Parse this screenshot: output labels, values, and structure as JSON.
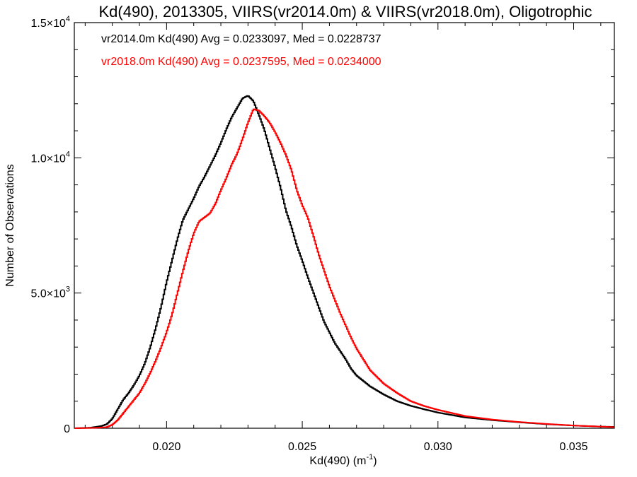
{
  "chart_data": {
    "type": "histogram",
    "title": "Kd(490), 2013305, VIIRS(vr2014.0m) & VIIRS(vr2018.0m), Oligotrophic",
    "xlabel": "Kd(490) (m",
    "xlabel_sup": "-1",
    "xlabel_close": ")",
    "ylabel": "Number of Observations",
    "xlim": [
      0.0166,
      0.0365
    ],
    "ylim": [
      0,
      15000
    ],
    "x_ticks": [
      {
        "value": 0.02,
        "label": "0.020"
      },
      {
        "value": 0.025,
        "label": "0.025"
      },
      {
        "value": 0.03,
        "label": "0.030"
      },
      {
        "value": 0.035,
        "label": "0.035"
      }
    ],
    "y_ticks": [
      {
        "value": 0,
        "mant": "0",
        "exp": ""
      },
      {
        "value": 5000,
        "mant": "5.0×10",
        "exp": "3"
      },
      {
        "value": 10000,
        "mant": "1.0×10",
        "exp": "4"
      },
      {
        "value": 15000,
        "mant": "1.5×10",
        "exp": "4"
      }
    ],
    "grid": false,
    "legend_position": "top-left",
    "series": [
      {
        "name": "vr2014.0m Kd(490) Avg = 0.0233097, Med = 0.0228737",
        "color": "#000000",
        "points": [
          [
            0.0166,
            0
          ],
          [
            0.0172,
            20
          ],
          [
            0.0176,
            80
          ],
          [
            0.0178,
            150
          ],
          [
            0.018,
            350
          ],
          [
            0.0182,
            700
          ],
          [
            0.0184,
            1050
          ],
          [
            0.0186,
            1300
          ],
          [
            0.0188,
            1600
          ],
          [
            0.019,
            1950
          ],
          [
            0.0192,
            2400
          ],
          [
            0.0194,
            3000
          ],
          [
            0.0196,
            3700
          ],
          [
            0.0198,
            4500
          ],
          [
            0.02,
            5400
          ],
          [
            0.0202,
            6200
          ],
          [
            0.0204,
            7000
          ],
          [
            0.0206,
            7700
          ],
          [
            0.0208,
            8100
          ],
          [
            0.021,
            8500
          ],
          [
            0.0212,
            8950
          ],
          [
            0.0214,
            9300
          ],
          [
            0.0216,
            9700
          ],
          [
            0.0218,
            10100
          ],
          [
            0.022,
            10550
          ],
          [
            0.0222,
            11050
          ],
          [
            0.0224,
            11500
          ],
          [
            0.0226,
            11850
          ],
          [
            0.0228,
            12200
          ],
          [
            0.023,
            12300
          ],
          [
            0.0232,
            12100
          ],
          [
            0.0234,
            11600
          ],
          [
            0.0236,
            11050
          ],
          [
            0.0238,
            10350
          ],
          [
            0.024,
            9650
          ],
          [
            0.0242,
            8900
          ],
          [
            0.0244,
            8050
          ],
          [
            0.0246,
            7450
          ],
          [
            0.0248,
            6750
          ],
          [
            0.025,
            6200
          ],
          [
            0.0252,
            5600
          ],
          [
            0.0254,
            5050
          ],
          [
            0.0256,
            4500
          ],
          [
            0.0258,
            3950
          ],
          [
            0.026,
            3550
          ],
          [
            0.0262,
            3150
          ],
          [
            0.0264,
            2850
          ],
          [
            0.0266,
            2550
          ],
          [
            0.0268,
            2200
          ],
          [
            0.027,
            1950
          ],
          [
            0.0275,
            1550
          ],
          [
            0.028,
            1250
          ],
          [
            0.0285,
            1000
          ],
          [
            0.029,
            830
          ],
          [
            0.0295,
            700
          ],
          [
            0.03,
            580
          ],
          [
            0.031,
            400
          ],
          [
            0.032,
            300
          ],
          [
            0.033,
            220
          ],
          [
            0.034,
            150
          ],
          [
            0.035,
            100
          ],
          [
            0.036,
            60
          ],
          [
            0.0365,
            50
          ]
        ]
      },
      {
        "name": "vr2018.0m Kd(490) Avg = 0.0237595, Med = 0.0234000",
        "color": "#ff0000",
        "points": [
          [
            0.0166,
            0
          ],
          [
            0.0174,
            15
          ],
          [
            0.0178,
            40
          ],
          [
            0.018,
            130
          ],
          [
            0.0182,
            300
          ],
          [
            0.0184,
            550
          ],
          [
            0.0186,
            800
          ],
          [
            0.0188,
            1050
          ],
          [
            0.019,
            1300
          ],
          [
            0.0192,
            1650
          ],
          [
            0.0194,
            2050
          ],
          [
            0.0196,
            2500
          ],
          [
            0.0198,
            3000
          ],
          [
            0.02,
            3550
          ],
          [
            0.0202,
            4200
          ],
          [
            0.0204,
            5000
          ],
          [
            0.0206,
            5800
          ],
          [
            0.0208,
            6550
          ],
          [
            0.021,
            7200
          ],
          [
            0.0212,
            7650
          ],
          [
            0.0214,
            7800
          ],
          [
            0.0216,
            7950
          ],
          [
            0.0218,
            8300
          ],
          [
            0.022,
            8800
          ],
          [
            0.0222,
            9250
          ],
          [
            0.0224,
            9750
          ],
          [
            0.0226,
            10150
          ],
          [
            0.0228,
            10700
          ],
          [
            0.023,
            11300
          ],
          [
            0.0232,
            11800
          ],
          [
            0.0234,
            11750
          ],
          [
            0.0236,
            11550
          ],
          [
            0.0238,
            11300
          ],
          [
            0.024,
            10950
          ],
          [
            0.0242,
            10550
          ],
          [
            0.0244,
            10100
          ],
          [
            0.0246,
            9550
          ],
          [
            0.0248,
            8800
          ],
          [
            0.025,
            8250
          ],
          [
            0.0252,
            7800
          ],
          [
            0.0254,
            7150
          ],
          [
            0.0256,
            6450
          ],
          [
            0.0258,
            5850
          ],
          [
            0.026,
            5250
          ],
          [
            0.0262,
            4750
          ],
          [
            0.0264,
            4250
          ],
          [
            0.0266,
            3800
          ],
          [
            0.0268,
            3350
          ],
          [
            0.027,
            2950
          ],
          [
            0.0275,
            2150
          ],
          [
            0.028,
            1650
          ],
          [
            0.0285,
            1300
          ],
          [
            0.029,
            1000
          ],
          [
            0.0295,
            820
          ],
          [
            0.03,
            680
          ],
          [
            0.031,
            450
          ],
          [
            0.032,
            320
          ],
          [
            0.033,
            230
          ],
          [
            0.034,
            160
          ],
          [
            0.035,
            100
          ],
          [
            0.036,
            60
          ],
          [
            0.0365,
            40
          ]
        ]
      }
    ]
  }
}
